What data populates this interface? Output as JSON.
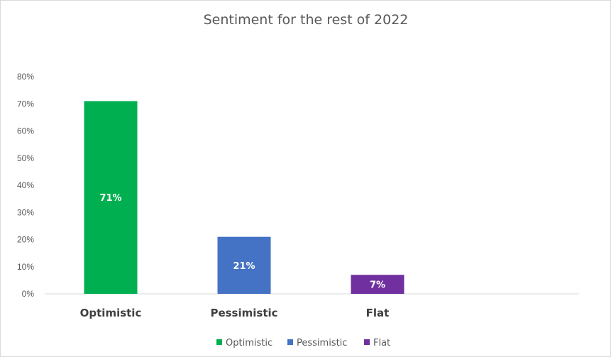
{
  "chart_data": {
    "type": "bar",
    "title": "Sentiment for the rest of 2022",
    "categories": [
      "Optimistic",
      "Pessimistic",
      "Flat"
    ],
    "values": [
      71,
      21,
      7
    ],
    "value_format": "percent",
    "data_labels": [
      "71%",
      "21%",
      "7%"
    ],
    "colors": [
      "#00b050",
      "#4472c4",
      "#7030a0"
    ],
    "ylim": [
      0,
      80
    ],
    "yticks": [
      "0%",
      "10%",
      "20%",
      "30%",
      "40%",
      "50%",
      "60%",
      "70%",
      "80%"
    ],
    "grid": false,
    "legend": {
      "position": "bottom",
      "entries": [
        "Optimistic",
        "Pessimistic",
        "Flat"
      ]
    }
  }
}
